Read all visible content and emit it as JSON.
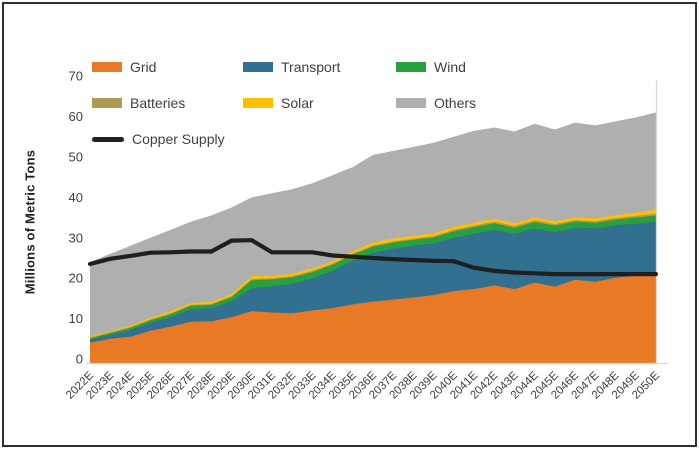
{
  "chart_data": {
    "type": "area",
    "stacked": true,
    "title": "",
    "xlabel": "",
    "ylabel": "Millions of Metric Tons",
    "ylim": [
      0,
      70
    ],
    "yticks": [
      0,
      10,
      20,
      30,
      40,
      50,
      60,
      70
    ],
    "grid": false,
    "legend_position": "top-left-inside",
    "categories": [
      "2022E",
      "2023E",
      "2024E",
      "2025E",
      "2026E",
      "2027E",
      "2028E",
      "2029E",
      "2030E",
      "2031E",
      "2032E",
      "2033E",
      "2034E",
      "2035E",
      "2036E",
      "2037E",
      "2038E",
      "2039E",
      "2040E",
      "2041E",
      "2042E",
      "2043E",
      "2044E",
      "2045E",
      "2046E",
      "2047E",
      "2048E",
      "2049E",
      "2050E"
    ],
    "series": [
      {
        "name": "Grid",
        "color": "#E87A25",
        "values": [
          5.0,
          6.0,
          6.5,
          8.0,
          9.0,
          10.2,
          10.3,
          11.3,
          12.8,
          12.5,
          12.3,
          13.0,
          13.6,
          14.5,
          15.2,
          15.7,
          16.2,
          16.8,
          17.8,
          18.3,
          19.2,
          18.3,
          19.9,
          18.9,
          20.6,
          20.1,
          21.1,
          21.6,
          22.4
        ]
      },
      {
        "name": "Transport",
        "color": "#31708F",
        "values": [
          0.8,
          1.0,
          1.7,
          2.0,
          2.4,
          3.1,
          3.3,
          4.0,
          5.7,
          6.5,
          7.3,
          8.0,
          9.2,
          10.8,
          12.1,
          12.6,
          12.8,
          12.8,
          13.2,
          13.7,
          13.8,
          13.7,
          13.4,
          13.5,
          12.9,
          13.2,
          13.0,
          12.9,
          12.6
        ]
      },
      {
        "name": "Wind",
        "color": "#28A03E",
        "values": [
          0.3,
          0.4,
          0.5,
          0.6,
          0.7,
          0.9,
          0.8,
          1.0,
          2.0,
          1.7,
          1.6,
          1.5,
          1.5,
          1.5,
          1.5,
          1.5,
          1.5,
          1.5,
          1.6,
          1.6,
          1.6,
          1.5,
          1.6,
          1.6,
          1.5,
          1.4,
          1.4,
          1.5,
          1.5
        ]
      },
      {
        "name": "Batteries",
        "color": "#AF9A54",
        "values": [
          0.2,
          0.2,
          0.2,
          0.2,
          0.2,
          0.2,
          0.2,
          0.2,
          0.3,
          0.3,
          0.3,
          0.3,
          0.3,
          0.3,
          0.3,
          0.3,
          0.3,
          0.3,
          0.4,
          0.4,
          0.4,
          0.4,
          0.4,
          0.4,
          0.4,
          0.4,
          0.4,
          0.4,
          0.5
        ]
      },
      {
        "name": "Solar",
        "color": "#FFC000",
        "values": [
          0.3,
          0.3,
          0.4,
          0.4,
          0.5,
          0.5,
          0.5,
          0.5,
          0.7,
          0.6,
          0.6,
          0.6,
          0.6,
          0.6,
          0.7,
          0.7,
          0.7,
          0.7,
          0.7,
          0.7,
          0.7,
          0.7,
          0.7,
          0.7,
          0.7,
          0.7,
          0.7,
          0.8,
          1.0
        ]
      },
      {
        "name": "Others",
        "color": "#AFAFAF",
        "values": [
          18.4,
          19.1,
          19.7,
          19.8,
          20.2,
          20.1,
          21.4,
          21.5,
          19.5,
          20.4,
          20.9,
          21.1,
          21.3,
          20.8,
          21.7,
          21.7,
          22.0,
          22.4,
          22.3,
          22.8,
          22.6,
          22.7,
          23.2,
          22.7,
          23.4,
          23.0,
          23.2,
          23.6,
          24.0
        ]
      }
    ],
    "line_series": {
      "name": "Copper Supply",
      "color": "#1F1F1F",
      "values": [
        24.5,
        25.8,
        26.5,
        27.3,
        27.4,
        27.6,
        27.6,
        30.3,
        30.4,
        27.4,
        27.4,
        27.4,
        26.6,
        26.3,
        26.0,
        25.7,
        25.5,
        25.3,
        25.2,
        23.6,
        22.8,
        22.4,
        22.2,
        22.0,
        22.0,
        22.0,
        22.0,
        22.0,
        22.0
      ]
    },
    "axis_color": "#D9D9D9",
    "tick_label_color": "#3F3F3F"
  }
}
